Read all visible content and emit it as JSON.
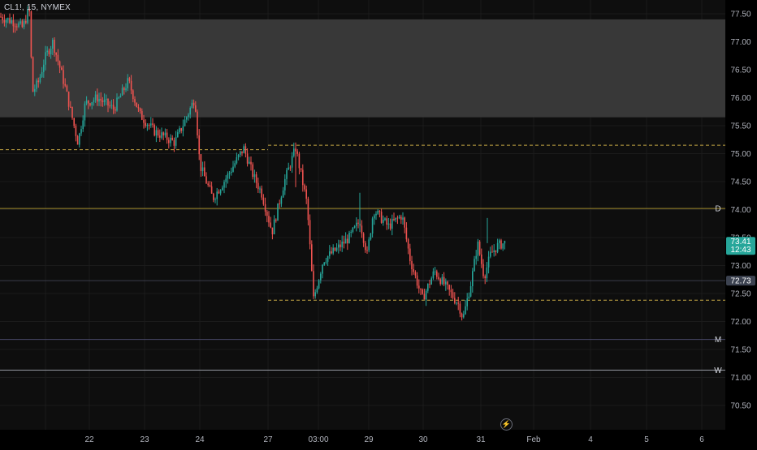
{
  "header": {
    "symbol": "CL1!, 15, NYMEX"
  },
  "price_axis": {
    "labels": [
      "77.50",
      "77.00",
      "76.50",
      "76.00",
      "75.50",
      "75.00",
      "74.50",
      "74.00",
      "73.50",
      "73.00",
      "72.50",
      "72.00",
      "71.50",
      "71.00",
      "70.50"
    ],
    "values": [
      77.5,
      77.0,
      76.5,
      76.0,
      75.5,
      75.0,
      74.5,
      74.0,
      73.5,
      73.0,
      72.5,
      72.0,
      71.5,
      71.0,
      70.5
    ],
    "last_price": "73.41",
    "countdown": "12:43",
    "marker_price": "72.73",
    "last_price_value": 73.41,
    "marker_price_value": 72.73
  },
  "time_axis": {
    "labels": [
      "22",
      "23",
      "24",
      "27",
      "03:00",
      "29",
      "30",
      "31",
      "Feb",
      "4",
      "5",
      "6"
    ]
  },
  "levels": [
    {
      "name": "D",
      "price": 74.02,
      "color": "#a38d2e",
      "style": "solid",
      "tag": "D"
    },
    {
      "name": "M",
      "price": 71.68,
      "color": "#4a4a6a",
      "style": "solid",
      "tag": "M"
    },
    {
      "name": "W",
      "price": 71.13,
      "color": "#9598a1",
      "style": "solid",
      "tag": "W"
    },
    {
      "name": "upper-dashed-left",
      "price": 75.07,
      "color": "#c6a845",
      "style": "dashed",
      "tag": ""
    },
    {
      "name": "upper-dashed-right",
      "price": 75.15,
      "color": "#c6a845",
      "style": "dashed",
      "tag": ""
    },
    {
      "name": "lower-dashed",
      "price": 72.38,
      "color": "#c6a845",
      "style": "dashed",
      "tag": ""
    },
    {
      "name": "marker-line",
      "price": 72.73,
      "color": "#3a3d4a",
      "style": "solid",
      "tag": ""
    }
  ],
  "zone": {
    "top_price": 77.4,
    "bottom_price": 75.65,
    "color": "#383838"
  },
  "colors": {
    "up": "#26a69a",
    "down": "#ef5350",
    "background": "#0e0e0e",
    "last_price_bg": "#26a69a",
    "marker_bg": "#3c4250"
  },
  "icons": {
    "alert": "alert-clock-icon"
  }
}
